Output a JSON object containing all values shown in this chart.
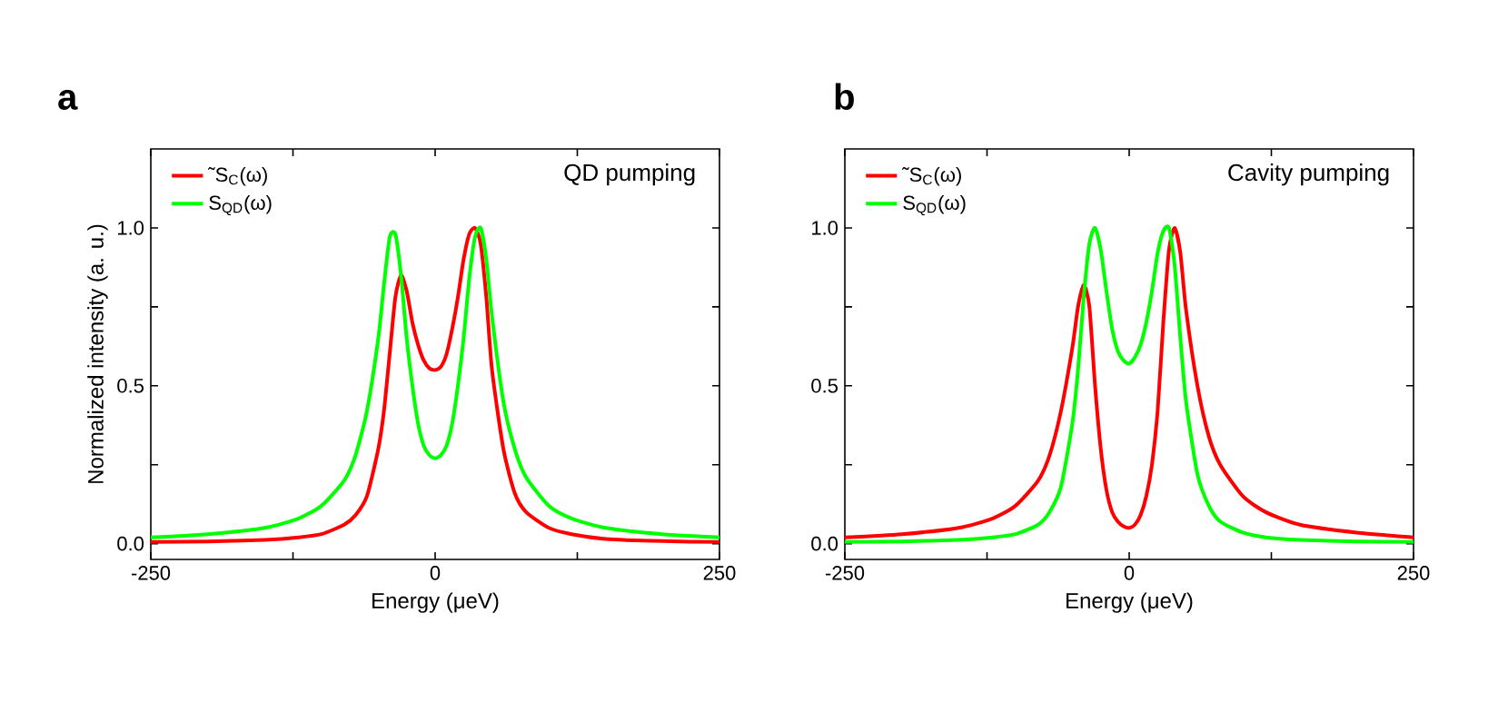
{
  "chart_data": [
    {
      "type": "line",
      "title": "a",
      "xlabel": "Energy (μeV)",
      "ylabel": "Normalized intensity (a. u.)",
      "annotations": [
        "QD pumping"
      ],
      "xlim": [
        -250,
        250
      ],
      "ylim": [
        -0.05,
        1.25
      ],
      "xticks": [
        -250,
        0,
        250
      ],
      "yticks": [
        {
          "value": 0,
          "label": "0.0"
        },
        {
          "value": 0.5,
          "label": "0.5"
        },
        {
          "value": 1,
          "label": "1.0"
        }
      ],
      "legend": "top left",
      "marker": "none",
      "line_style": "solid",
      "x": [
        -250,
        -200,
        -150,
        -120,
        -100,
        -80,
        -70,
        -60,
        -50,
        -45,
        -40,
        -35,
        -30,
        -25,
        -20,
        -15,
        -10,
        -5,
        0,
        5,
        10,
        15,
        20,
        25,
        30,
        35,
        40,
        45,
        50,
        60,
        70,
        80,
        100,
        120,
        150,
        200,
        250
      ],
      "series": [
        {
          "name": "˜S$_{C}$(ω)",
          "color": "#ff0000",
          "values": [
            0.005,
            0.007,
            0.012,
            0.02,
            0.03,
            0.06,
            0.09,
            0.15,
            0.3,
            0.42,
            0.6,
            0.78,
            0.85,
            0.8,
            0.7,
            0.63,
            0.58,
            0.555,
            0.55,
            0.56,
            0.6,
            0.68,
            0.78,
            0.9,
            0.98,
            1.0,
            0.95,
            0.78,
            0.55,
            0.3,
            0.16,
            0.1,
            0.05,
            0.03,
            0.015,
            0.008,
            0.005
          ]
        },
        {
          "name": "S$_{QD}$(ω)",
          "color": "#00ff00",
          "values": [
            0.02,
            0.03,
            0.05,
            0.08,
            0.12,
            0.2,
            0.28,
            0.42,
            0.65,
            0.82,
            0.97,
            0.98,
            0.85,
            0.65,
            0.5,
            0.38,
            0.31,
            0.28,
            0.27,
            0.28,
            0.31,
            0.38,
            0.5,
            0.65,
            0.84,
            0.97,
            1.0,
            0.9,
            0.72,
            0.45,
            0.3,
            0.21,
            0.12,
            0.08,
            0.05,
            0.03,
            0.02
          ]
        }
      ]
    },
    {
      "type": "line",
      "title": "b",
      "xlabel": "Energy (μeV)",
      "annotations": [
        "Cavity pumping"
      ],
      "xlim": [
        -250,
        250
      ],
      "ylim": [
        -0.05,
        1.25
      ],
      "xticks": [
        -250,
        0,
        250
      ],
      "yticks": [
        {
          "value": 0,
          "label": "0.0"
        },
        {
          "value": 0.5,
          "label": "0.5"
        },
        {
          "value": 1,
          "label": "1.0"
        }
      ],
      "legend": "top left",
      "marker": "none",
      "line_style": "solid",
      "x": [
        -250,
        -200,
        -150,
        -120,
        -100,
        -80,
        -70,
        -60,
        -50,
        -45,
        -40,
        -35,
        -30,
        -25,
        -20,
        -15,
        -10,
        -5,
        0,
        5,
        10,
        15,
        20,
        25,
        30,
        35,
        40,
        45,
        50,
        60,
        70,
        80,
        100,
        120,
        150,
        200,
        250
      ],
      "series": [
        {
          "name": "˜S$_{C}$(ω)",
          "color": "#ff0000",
          "values": [
            0.02,
            0.03,
            0.05,
            0.08,
            0.12,
            0.2,
            0.28,
            0.42,
            0.62,
            0.75,
            0.82,
            0.75,
            0.5,
            0.3,
            0.17,
            0.1,
            0.07,
            0.055,
            0.05,
            0.06,
            0.09,
            0.15,
            0.25,
            0.42,
            0.7,
            0.93,
            1.0,
            0.92,
            0.74,
            0.5,
            0.34,
            0.25,
            0.15,
            0.1,
            0.06,
            0.035,
            0.02
          ]
        },
        {
          "name": "S$_{QD}$(ω)",
          "color": "#00ff00",
          "values": [
            0.005,
            0.007,
            0.012,
            0.02,
            0.03,
            0.06,
            0.1,
            0.18,
            0.38,
            0.55,
            0.78,
            0.95,
            1.0,
            0.93,
            0.8,
            0.68,
            0.61,
            0.58,
            0.57,
            0.59,
            0.63,
            0.7,
            0.8,
            0.92,
            0.99,
            1.0,
            0.88,
            0.65,
            0.45,
            0.22,
            0.12,
            0.07,
            0.035,
            0.02,
            0.012,
            0.007,
            0.005
          ]
        }
      ]
    }
  ]
}
